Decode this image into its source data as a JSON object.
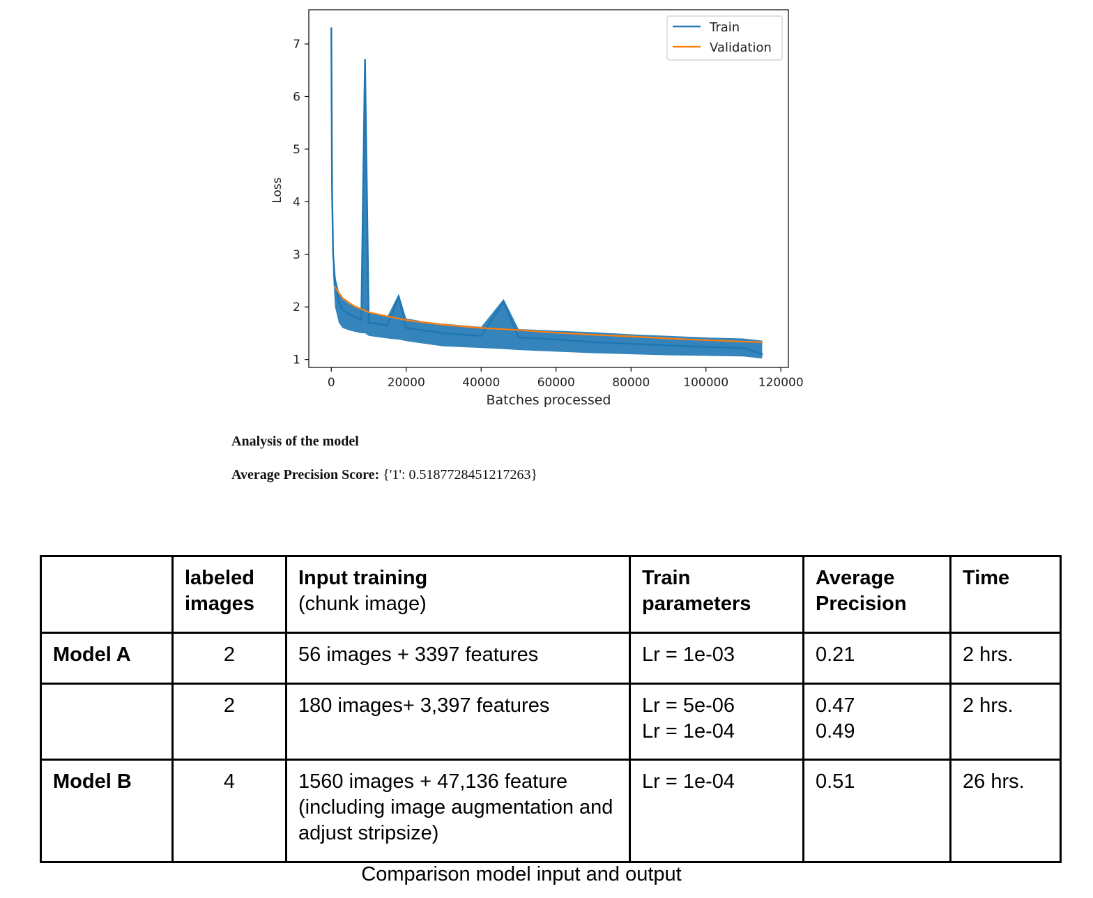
{
  "chart_data": {
    "type": "line",
    "xlabel": "Batches processed",
    "ylabel": "Loss",
    "xlim": [
      -6000,
      122000
    ],
    "ylim": [
      0.85,
      7.65
    ],
    "xticks": [
      0,
      20000,
      40000,
      60000,
      80000,
      100000,
      120000
    ],
    "yticks": [
      1,
      2,
      3,
      4,
      5,
      6,
      7
    ],
    "legend_position": "top-right",
    "grid": false,
    "series": [
      {
        "name": "Train",
        "color": "#1f77b4",
        "x": [
          0,
          200,
          500,
          1000,
          2000,
          3000,
          5000,
          8000,
          9000,
          10000,
          15000,
          18000,
          20000,
          25000,
          30000,
          40000,
          46000,
          50000,
          60000,
          70000,
          80000,
          90000,
          100000,
          110000,
          115000
        ],
        "y": [
          7.3,
          4.3,
          3.0,
          2.5,
          2.1,
          1.95,
          1.85,
          1.75,
          6.7,
          1.7,
          1.65,
          2.2,
          1.6,
          1.55,
          1.5,
          1.45,
          2.1,
          1.42,
          1.38,
          1.33,
          1.3,
          1.27,
          1.24,
          1.22,
          1.1
        ],
        "band_min": [
          7.0,
          3.8,
          2.6,
          2.0,
          1.7,
          1.6,
          1.55,
          1.5,
          1.5,
          1.45,
          1.4,
          1.38,
          1.35,
          1.3,
          1.25,
          1.22,
          1.2,
          1.18,
          1.15,
          1.12,
          1.1,
          1.08,
          1.07,
          1.06,
          1.02
        ],
        "band_max": [
          7.35,
          4.4,
          3.1,
          2.6,
          2.3,
          2.15,
          2.05,
          1.98,
          6.7,
          1.9,
          1.82,
          2.25,
          1.78,
          1.72,
          1.68,
          1.62,
          2.15,
          1.58,
          1.55,
          1.52,
          1.48,
          1.45,
          1.42,
          1.4,
          1.36
        ]
      },
      {
        "name": "Validation",
        "color": "#ff7f0e",
        "x": [
          1000,
          3000,
          6000,
          10000,
          15000,
          20000,
          30000,
          40000,
          50000,
          60000,
          70000,
          80000,
          90000,
          100000,
          110000,
          115000
        ],
        "y": [
          2.38,
          2.17,
          2.02,
          1.9,
          1.82,
          1.75,
          1.66,
          1.6,
          1.56,
          1.51,
          1.47,
          1.44,
          1.4,
          1.37,
          1.34,
          1.33
        ]
      }
    ]
  },
  "analysis": {
    "heading": "Analysis of the model",
    "ap_label": "Average Precision Score:",
    "ap_value": "{'1': 0.5187728451217263}"
  },
  "table": {
    "headers": [
      {
        "main": "",
        "sub": ""
      },
      {
        "main": "labeled images",
        "sub": ""
      },
      {
        "main": "Input training",
        "sub": "(chunk image)"
      },
      {
        "main": "Train parameters",
        "sub": ""
      },
      {
        "main": "Average Precision",
        "sub": ""
      },
      {
        "main": "Time",
        "sub": ""
      }
    ],
    "rows": [
      {
        "model": "Model A",
        "labeled": "2",
        "input": "56 images + 3397 features",
        "params": [
          "Lr = 1e-03"
        ],
        "ap": [
          "0.21"
        ],
        "time": "2 hrs."
      },
      {
        "model": "",
        "labeled": "2",
        "input": "180 images+ 3,397 features",
        "params": [
          "Lr = 5e-06",
          "Lr = 1e-04"
        ],
        "ap": [
          "0.47",
          "0.49"
        ],
        "time": "2 hrs."
      },
      {
        "model": "Model B",
        "labeled": "4",
        "input": "1560 images + 47,136 feature (including image augmentation and adjust stripsize)",
        "params": [
          "Lr = 1e-04"
        ],
        "ap": [
          "0.51"
        ],
        "time": "26 hrs."
      }
    ],
    "caption": "Comparison model input and output"
  }
}
